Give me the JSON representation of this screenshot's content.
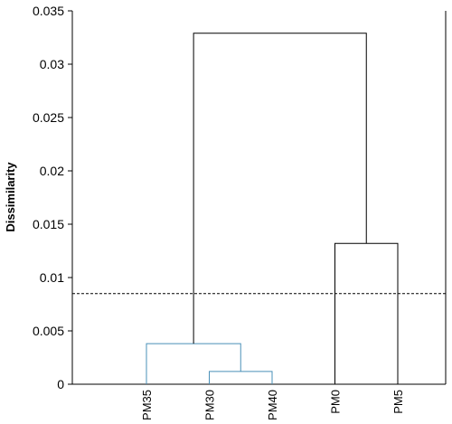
{
  "chart_data": {
    "type": "dendrogram",
    "title": "",
    "xlabel": "",
    "ylabel": "Dissimilarity",
    "ylim": [
      0,
      0.035
    ],
    "yticks": [
      0,
      0.005,
      0.01,
      0.015,
      0.02,
      0.025,
      0.03,
      0.035
    ],
    "ytick_labels": [
      "0",
      "0.005",
      "0.01",
      "0.015",
      "0.02",
      "0.025",
      "0.03",
      "0.035"
    ],
    "leaves": [
      "PM35",
      "PM30",
      "PM40",
      "PM0",
      "PM5"
    ],
    "merges": [
      {
        "left": "PM30",
        "right": "PM40",
        "height": 0.0012,
        "color": "#4a90b8"
      },
      {
        "left": "PM35",
        "right": [
          "PM30",
          "PM40"
        ],
        "height": 0.0038,
        "color": "#4a90b8"
      },
      {
        "left": "PM0",
        "right": "PM5",
        "height": 0.0132,
        "color": "#000000"
      },
      {
        "left": [
          "PM35",
          "PM30",
          "PM40"
        ],
        "right": [
          "PM0",
          "PM5"
        ],
        "height": 0.0329,
        "color": "#000000"
      }
    ],
    "cut_line": 0.0085,
    "grid": false,
    "colors": {
      "cluster_blue": "#4a90b8",
      "cluster_black": "#000000",
      "cut_line": "#000000"
    }
  }
}
